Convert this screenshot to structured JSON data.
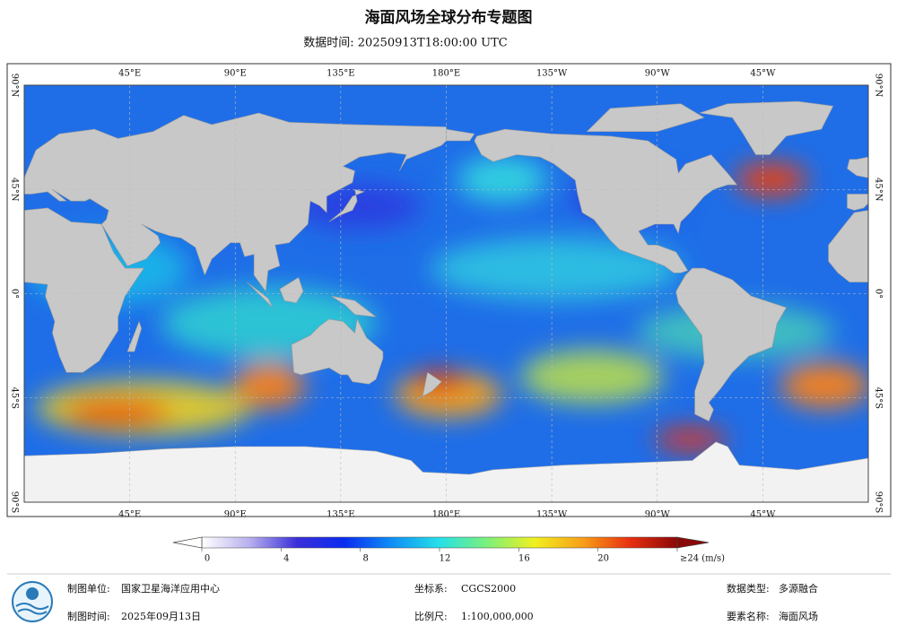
{
  "title": "海面风场全球分布专题图",
  "subtitle": "数据时间: 20250913T18:00:00 UTC",
  "map": {
    "lon_range": [
      0,
      360
    ],
    "lat_range": [
      -90,
      90
    ],
    "lon_ticks": [
      {
        "value": 45,
        "label": "45°E"
      },
      {
        "value": 90,
        "label": "90°E"
      },
      {
        "value": 135,
        "label": "135°E"
      },
      {
        "value": 180,
        "label": "180°E"
      },
      {
        "value": 225,
        "label": "135°W"
      },
      {
        "value": 270,
        "label": "90°W"
      },
      {
        "value": 315,
        "label": "45°W"
      }
    ],
    "lat_ticks": [
      {
        "value": 90,
        "label": "90°N"
      },
      {
        "value": 45,
        "label": "45°N"
      },
      {
        "value": 0,
        "label": "0°"
      },
      {
        "value": -45,
        "label": "45°S"
      },
      {
        "value": -90,
        "label": "90°S"
      }
    ]
  },
  "colorbar": {
    "range": [
      0,
      24
    ],
    "ticks": [
      0,
      4,
      8,
      12,
      16,
      20,
      {
        "value": 24,
        "label": "≥24 (m/s)"
      }
    ],
    "colors": [
      "#ffffff",
      "#b8b0ee",
      "#3a2fd8",
      "#0a2cf0",
      "#0f8ff5",
      "#26e0e8",
      "#7cf07a",
      "#f0f020",
      "#f8a018",
      "#e83010",
      "#8a0808"
    ]
  },
  "footer": {
    "unit_label": "制图单位:",
    "unit": "国家卫星海洋应用中心",
    "crs_label": "坐标系:",
    "crs": "CGCS2000",
    "type_label": "数据类型:",
    "type": "多源融合",
    "date_label": "制图时间:",
    "date": "2025年09月13日",
    "scale_label": "比例尺:",
    "scale": "1:100,000,000",
    "element_label": "要素名称:",
    "element": "海面风场"
  }
}
